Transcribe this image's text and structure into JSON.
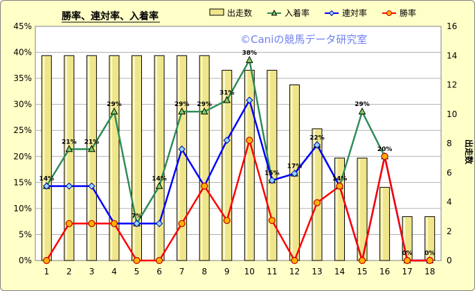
{
  "chart_data": {
    "type": "bar",
    "title": "勝率、連対率、入着率",
    "watermark": "©Caniの競馬データ研究室",
    "categories": [
      "1",
      "2",
      "3",
      "4",
      "5",
      "6",
      "7",
      "8",
      "9",
      "10",
      "11",
      "12",
      "13",
      "14",
      "15",
      "16",
      "17",
      "18"
    ],
    "y_left": {
      "ticks": [
        "0%",
        "5%",
        "10%",
        "15%",
        "20%",
        "25%",
        "30%",
        "35%",
        "40%",
        "45%"
      ],
      "range": [
        0,
        45
      ]
    },
    "y_right": {
      "label": "出走数",
      "ticks": [
        "0",
        "2",
        "4",
        "6",
        "8",
        "10",
        "12",
        "14",
        "16"
      ],
      "range": [
        0,
        16
      ]
    },
    "series": [
      {
        "name": "出走数",
        "type": "bar",
        "axis": "right",
        "color": "#efe68c",
        "values": [
          14,
          14,
          14,
          14,
          14,
          14,
          14,
          14,
          13,
          13,
          13,
          12,
          9,
          7,
          7,
          5,
          3,
          3
        ]
      },
      {
        "name": "入着率",
        "type": "line",
        "axis": "left",
        "color": "#2e8b57",
        "marker": "triangle",
        "values": [
          14.3,
          21.4,
          21.4,
          28.6,
          7.1,
          14.3,
          28.6,
          28.6,
          30.8,
          38.5,
          15.4,
          16.7,
          22.2,
          14.3,
          28.6,
          20.0,
          0,
          0
        ],
        "labels": [
          "14%",
          "21%",
          "21%",
          "29%",
          "7%",
          "14%",
          "29%",
          "29%",
          "31%",
          "38%",
          "15%",
          "17%",
          "22%",
          "14%",
          "29%",
          "20%",
          "0%",
          "0%"
        ]
      },
      {
        "name": "連対率",
        "type": "line",
        "axis": "left",
        "color": "#0000ff",
        "marker": "diamond",
        "values": [
          14.3,
          14.3,
          14.3,
          7.1,
          7.1,
          7.1,
          21.4,
          14.3,
          23.1,
          30.8,
          15.4,
          16.7,
          22.2,
          14.3,
          0,
          20.0,
          0,
          0
        ]
      },
      {
        "name": "勝率",
        "type": "line",
        "axis": "left",
        "color": "#ff0000",
        "marker": "circle",
        "values": [
          0,
          7.1,
          7.1,
          7.1,
          0,
          0,
          7.1,
          14.3,
          7.7,
          23.1,
          7.7,
          0,
          11.1,
          14.3,
          0,
          20.0,
          0,
          0
        ]
      }
    ],
    "legend": {
      "position": "top-right"
    },
    "grid": true
  }
}
